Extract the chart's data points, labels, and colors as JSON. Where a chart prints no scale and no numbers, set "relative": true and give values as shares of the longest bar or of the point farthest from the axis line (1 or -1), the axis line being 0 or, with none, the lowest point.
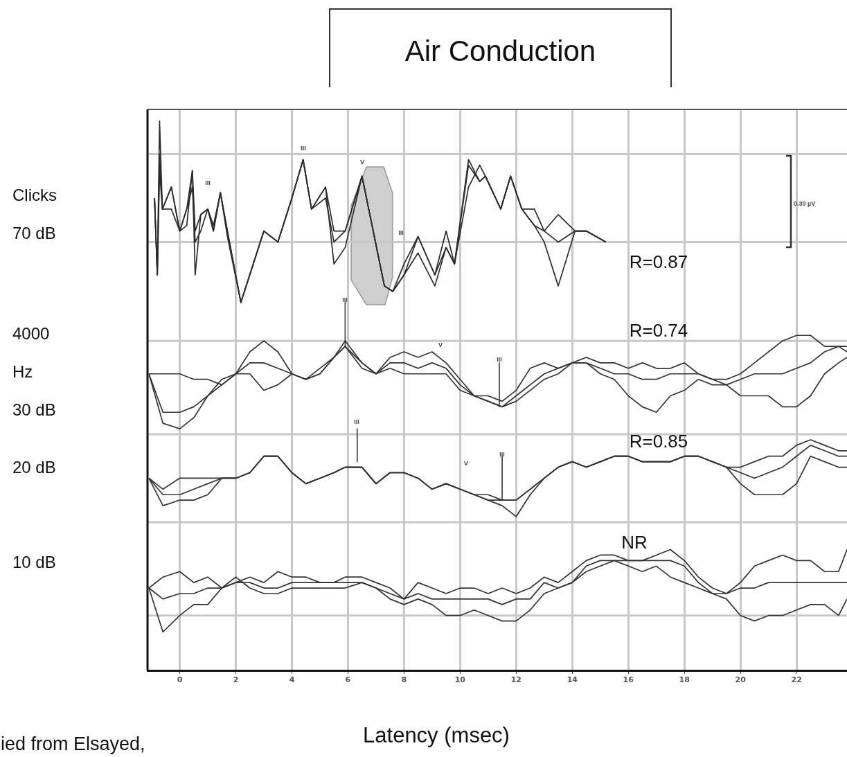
{
  "chart_data": {
    "type": "line",
    "relative": true,
    "title": "Air Conduction",
    "xlabel": "Latency (msec)",
    "xlim": [
      -1.15,
      23.8
    ],
    "xticks": [
      0,
      2,
      4,
      6,
      8,
      10,
      12,
      14,
      16,
      18,
      20,
      22
    ],
    "grid": "x",
    "legend": false,
    "marker": "none",
    "line_style": "solid",
    "x": [
      -1.1,
      -0.6,
      0,
      0.5,
      1.0,
      1.5,
      2.0,
      2.5,
      3.0,
      3.5,
      4.0,
      4.5,
      5.0,
      5.5,
      5.9,
      6.5,
      7.0,
      7.5,
      8.0,
      8.5,
      9.0,
      9.5,
      10.0,
      10.5,
      11.0,
      11.5,
      12.0,
      12.5,
      13.0,
      13.5,
      14.0,
      14.5,
      15.0,
      15.5,
      16.0,
      16.5,
      17.0,
      17.5,
      18.0,
      18.5,
      19.0,
      19.5,
      20.0,
      20.5,
      21.0,
      21.5,
      22.0,
      22.5,
      23.0,
      23.5,
      23.8
    ],
    "series": [
      {
        "color": "#2b2b2b",
        "x": [
          -0.9,
          -0.8,
          -0.72,
          -0.62,
          -0.3,
          0,
          0.25,
          0.45,
          0.55,
          0.75,
          1.0,
          1.2,
          1.45,
          1.7,
          2.18,
          3.0,
          3.5,
          4.0,
          4.4,
          4.7,
          5.2,
          5.5,
          5.9,
          6.5,
          6.9,
          7.3,
          7.6,
          8.0,
          8.5,
          9.1,
          9.5,
          9.8,
          10.3,
          10.7,
          10.9,
          11.45,
          11.8,
          12.2,
          12.65,
          13.0,
          13.5,
          14.1,
          14.5,
          15.2
        ],
        "values": [
          0.86,
          0.72,
          1.0,
          0.84,
          0.88,
          0.8,
          0.84,
          0.91,
          0.72,
          0.83,
          0.84,
          0.8,
          0.87,
          0.8,
          0.67,
          0.8,
          0.78,
          0.86,
          0.93,
          0.84,
          0.88,
          0.8,
          0.8,
          0.9,
          0.8,
          0.7,
          0.69,
          0.72,
          0.79,
          0.72,
          0.77,
          0.74,
          0.92,
          0.89,
          0.9,
          0.84,
          0.9,
          0.84,
          0.81,
          0.8,
          0.83,
          0.8,
          0.8,
          0.78
        ]
      },
      {
        "color": "#2b2b2b",
        "x": [
          -0.9,
          -0.8,
          -0.72,
          -0.62,
          -0.3,
          0,
          0.25,
          0.45,
          0.55,
          0.75,
          1.0,
          1.2,
          1.45,
          1.7,
          2.18,
          3.0,
          3.5,
          4.0,
          4.4,
          4.7,
          5.2,
          5.5,
          5.9,
          6.5,
          6.9,
          7.3,
          7.6,
          8.0,
          8.5,
          9.1,
          9.5,
          9.8,
          10.3,
          10.7,
          10.9,
          11.45,
          11.8,
          12.2,
          12.65,
          13.0,
          13.5,
          14.1,
          14.5,
          15.2
        ],
        "values": [
          0.86,
          0.72,
          0.94,
          0.84,
          0.84,
          0.8,
          0.81,
          0.91,
          0.8,
          0.83,
          0.84,
          0.8,
          0.87,
          0.79,
          0.67,
          0.8,
          0.78,
          0.86,
          0.93,
          0.84,
          0.88,
          0.74,
          0.77,
          0.9,
          0.8,
          0.7,
          0.69,
          0.72,
          0.76,
          0.7,
          0.77,
          0.74,
          0.93,
          0.89,
          0.9,
          0.84,
          0.9,
          0.84,
          0.81,
          0.78,
          0.7,
          0.8,
          0.8,
          0.78
        ]
      },
      {
        "color": "#2b2b2b",
        "x": [
          -0.9,
          -0.8,
          -0.72,
          -0.62,
          -0.3,
          0,
          0.25,
          0.45,
          0.55,
          0.75,
          1.0,
          1.2,
          1.45,
          1.7,
          2.18,
          3.0,
          3.5,
          4.0,
          4.4,
          4.7,
          5.2,
          5.5,
          5.9,
          6.5,
          6.9,
          7.3,
          7.6,
          8.0,
          8.5,
          9.1,
          9.5,
          9.8,
          10.3,
          10.7,
          10.9,
          11.45,
          11.8,
          12.2,
          12.65,
          13.0,
          13.5,
          14.1,
          14.5,
          15.2
        ],
        "values": [
          0.86,
          0.72,
          0.91,
          0.84,
          0.88,
          0.8,
          0.84,
          0.88,
          0.78,
          0.8,
          0.84,
          0.81,
          0.87,
          0.8,
          0.67,
          0.8,
          0.78,
          0.86,
          0.93,
          0.84,
          0.86,
          0.78,
          0.8,
          0.9,
          0.8,
          0.7,
          0.69,
          0.74,
          0.79,
          0.72,
          0.8,
          0.74,
          0.88,
          0.92,
          0.9,
          0.84,
          0.9,
          0.84,
          0.84,
          0.8,
          0.78,
          0.8,
          0.8,
          0.78
        ]
      },
      {
        "color": "#333333",
        "values": [
          0.54,
          0.54,
          0.54,
          0.53,
          0.53,
          0.52,
          0.54,
          0.58,
          0.6,
          0.58,
          0.54,
          0.53,
          0.55,
          0.57,
          0.6,
          0.56,
          0.54,
          0.57,
          0.58,
          0.57,
          0.58,
          0.56,
          0.53,
          0.5,
          0.5,
          0.49,
          0.51,
          0.55,
          0.56,
          0.55,
          0.56,
          0.57,
          0.56,
          0.56,
          0.55,
          0.56,
          0.55,
          0.55,
          0.56,
          0.54,
          0.53,
          0.53,
          0.54,
          0.56,
          0.58,
          0.6,
          0.61,
          0.61,
          0.59,
          0.59,
          0.59
        ]
      },
      {
        "color": "#333333",
        "values": [
          0.54,
          0.47,
          0.47,
          0.48,
          0.5,
          0.52,
          0.54,
          0.56,
          0.56,
          0.55,
          0.54,
          0.53,
          0.54,
          0.57,
          0.59,
          0.56,
          0.54,
          0.56,
          0.56,
          0.55,
          0.56,
          0.55,
          0.52,
          0.5,
          0.49,
          0.48,
          0.5,
          0.52,
          0.54,
          0.55,
          0.56,
          0.56,
          0.55,
          0.54,
          0.54,
          0.53,
          0.53,
          0.54,
          0.54,
          0.54,
          0.53,
          0.52,
          0.53,
          0.54,
          0.54,
          0.54,
          0.55,
          0.56,
          0.58,
          0.59,
          0.58
        ]
      },
      {
        "color": "#333333",
        "values": [
          0.54,
          0.45,
          0.44,
          0.46,
          0.5,
          0.53,
          0.54,
          0.54,
          0.51,
          0.52,
          0.54,
          0.53,
          0.54,
          0.57,
          0.59,
          0.55,
          0.54,
          0.55,
          0.54,
          0.54,
          0.54,
          0.54,
          0.51,
          0.5,
          0.49,
          0.48,
          0.49,
          0.51,
          0.53,
          0.54,
          0.56,
          0.56,
          0.54,
          0.53,
          0.5,
          0.48,
          0.47,
          0.5,
          0.51,
          0.53,
          0.52,
          0.52,
          0.5,
          0.5,
          0.5,
          0.48,
          0.48,
          0.5,
          0.54,
          0.56,
          0.57
        ]
      },
      {
        "color": "#333333",
        "values": [
          0.35,
          0.33,
          0.35,
          0.35,
          0.35,
          0.35,
          0.35,
          0.36,
          0.39,
          0.39,
          0.36,
          0.34,
          0.35,
          0.36,
          0.37,
          0.37,
          0.34,
          0.36,
          0.36,
          0.35,
          0.33,
          0.34,
          0.33,
          0.32,
          0.32,
          0.31,
          0.31,
          0.33,
          0.35,
          0.37,
          0.38,
          0.37,
          0.38,
          0.39,
          0.39,
          0.38,
          0.38,
          0.38,
          0.39,
          0.39,
          0.38,
          0.37,
          0.37,
          0.38,
          0.39,
          0.39,
          0.41,
          0.42,
          0.41,
          0.4,
          0.4
        ]
      },
      {
        "color": "#333333",
        "values": [
          0.35,
          0.32,
          0.32,
          0.33,
          0.34,
          0.35,
          0.35,
          0.36,
          0.39,
          0.39,
          0.36,
          0.34,
          0.35,
          0.36,
          0.37,
          0.37,
          0.34,
          0.36,
          0.36,
          0.35,
          0.33,
          0.34,
          0.33,
          0.32,
          0.31,
          0.31,
          0.31,
          0.33,
          0.35,
          0.37,
          0.38,
          0.37,
          0.38,
          0.39,
          0.39,
          0.38,
          0.38,
          0.38,
          0.39,
          0.39,
          0.38,
          0.37,
          0.36,
          0.35,
          0.36,
          0.37,
          0.39,
          0.41,
          0.4,
          0.39,
          0.39
        ]
      },
      {
        "color": "#333333",
        "values": [
          0.35,
          0.3,
          0.31,
          0.31,
          0.32,
          0.35,
          0.35,
          0.36,
          0.39,
          0.39,
          0.36,
          0.34,
          0.35,
          0.36,
          0.37,
          0.37,
          0.34,
          0.36,
          0.36,
          0.35,
          0.33,
          0.34,
          0.33,
          0.32,
          0.31,
          0.3,
          0.28,
          0.32,
          0.35,
          0.37,
          0.38,
          0.37,
          0.38,
          0.39,
          0.39,
          0.38,
          0.38,
          0.38,
          0.39,
          0.39,
          0.38,
          0.37,
          0.34,
          0.32,
          0.32,
          0.32,
          0.34,
          0.39,
          0.38,
          0.37,
          0.37
        ]
      },
      {
        "color": "#333333",
        "values": [
          0.15,
          0.17,
          0.18,
          0.16,
          0.17,
          0.15,
          0.16,
          0.17,
          0.16,
          0.18,
          0.17,
          0.17,
          0.16,
          0.16,
          0.17,
          0.17,
          0.16,
          0.15,
          0.13,
          0.16,
          0.15,
          0.14,
          0.15,
          0.15,
          0.14,
          0.15,
          0.14,
          0.15,
          0.17,
          0.16,
          0.18,
          0.2,
          0.21,
          0.21,
          0.2,
          0.2,
          0.21,
          0.22,
          0.2,
          0.17,
          0.15,
          0.14,
          0.16,
          0.19,
          0.2,
          0.21,
          0.2,
          0.2,
          0.18,
          0.18,
          0.22
        ]
      },
      {
        "color": "#333333",
        "values": [
          0.15,
          0.13,
          0.14,
          0.14,
          0.15,
          0.15,
          0.16,
          0.16,
          0.15,
          0.15,
          0.16,
          0.16,
          0.16,
          0.16,
          0.16,
          0.16,
          0.15,
          0.14,
          0.13,
          0.14,
          0.13,
          0.13,
          0.13,
          0.13,
          0.13,
          0.12,
          0.13,
          0.13,
          0.16,
          0.15,
          0.16,
          0.19,
          0.2,
          0.2,
          0.2,
          0.2,
          0.2,
          0.2,
          0.19,
          0.16,
          0.14,
          0.14,
          0.15,
          0.15,
          0.16,
          0.16,
          0.16,
          0.16,
          0.16,
          0.16,
          0.16
        ]
      },
      {
        "color": "#333333",
        "values": [
          0.15,
          0.07,
          0.1,
          0.12,
          0.12,
          0.15,
          0.17,
          0.15,
          0.14,
          0.14,
          0.15,
          0.15,
          0.15,
          0.15,
          0.15,
          0.16,
          0.15,
          0.13,
          0.12,
          0.13,
          0.12,
          0.1,
          0.1,
          0.11,
          0.1,
          0.09,
          0.09,
          0.11,
          0.14,
          0.15,
          0.16,
          0.18,
          0.19,
          0.2,
          0.19,
          0.18,
          0.19,
          0.17,
          0.16,
          0.15,
          0.14,
          0.13,
          0.1,
          0.09,
          0.1,
          0.1,
          0.11,
          0.12,
          0.12,
          0.1,
          0.13
        ]
      },
      {
        "color": "#444444",
        "x": [
          5.9,
          5.9
        ],
        "values": [
          0.67,
          0.59
        ]
      },
      {
        "color": "#444444",
        "x": [
          11.4,
          11.4
        ],
        "values": [
          0.56,
          0.48
        ]
      },
      {
        "color": "#444444",
        "x": [
          6.33,
          6.33
        ],
        "values": [
          0.44,
          0.38
        ]
      },
      {
        "color": "#444444",
        "x": [
          11.5,
          11.5
        ],
        "values": [
          0.39,
          0.31
        ]
      }
    ],
    "ref_lines": [
      {
        "axis": "y",
        "value": 0.94,
        "color": "#c8c8c8"
      },
      {
        "axis": "y",
        "value": 0.78,
        "color": "#c8c8c8"
      },
      {
        "axis": "y",
        "value": 0.6,
        "color": "#c8c8c8"
      },
      {
        "axis": "y",
        "value": 0.43,
        "color": "#c8c8c8"
      },
      {
        "axis": "y",
        "value": 0.27,
        "color": "#c8c8c8"
      },
      {
        "axis": "y",
        "value": 0.1,
        "color": "#c8c8c8"
      }
    ],
    "annotations": [
      "Clicks",
      "70 dB",
      "4000",
      "Hz",
      "30 dB",
      "20 dB",
      "10 dB",
      "0.30 µV",
      "ied from Elsayed,",
      "R=0.87",
      "R=0.74",
      "R=0.85",
      "NR",
      "III",
      "III",
      "V",
      "III",
      "III",
      "V",
      "III",
      "III",
      "V",
      "III"
    ]
  }
}
